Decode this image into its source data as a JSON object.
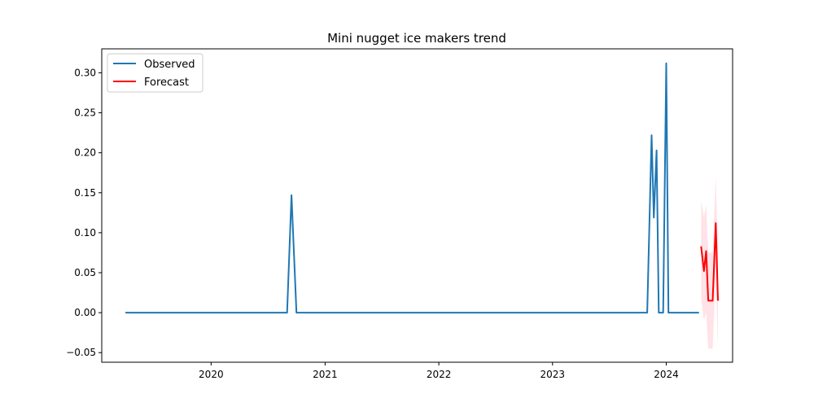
{
  "chart_data": {
    "type": "line",
    "title": "Mini nugget ice makers trend",
    "xlabel": "",
    "ylabel": "",
    "xlim": [
      "2019-01-15",
      "2024-08-01"
    ],
    "ylim": [
      -0.062,
      0.33
    ],
    "x_ticks": [
      "2020",
      "2021",
      "2022",
      "2023",
      "2024"
    ],
    "y_ticks": [
      "−0.05",
      "0.00",
      "0.05",
      "0.10",
      "0.15",
      "0.20",
      "0.25",
      "0.30"
    ],
    "grid": false,
    "legend_position": "top-left",
    "series": [
      {
        "name": "Observed",
        "color": "#1f77b4",
        "points": [
          {
            "x": "2019-04-01",
            "y": 0.0
          },
          {
            "x": "2020-09-01",
            "y": 0.0
          },
          {
            "x": "2020-09-15",
            "y": 0.147
          },
          {
            "x": "2020-10-01",
            "y": 0.0
          },
          {
            "x": "2023-11-01",
            "y": 0.0
          },
          {
            "x": "2023-11-15",
            "y": 0.222
          },
          {
            "x": "2023-11-22",
            "y": 0.119
          },
          {
            "x": "2023-12-01",
            "y": 0.203
          },
          {
            "x": "2023-12-08",
            "y": 0.0
          },
          {
            "x": "2023-12-22",
            "y": 0.0
          },
          {
            "x": "2024-01-01",
            "y": 0.312
          },
          {
            "x": "2024-01-08",
            "y": 0.0
          },
          {
            "x": "2024-04-15",
            "y": 0.0
          }
        ]
      },
      {
        "name": "Forecast",
        "color": "#ff0000",
        "band_color": "#ffc0cb",
        "points": [
          {
            "x": "2024-04-22",
            "y": 0.083,
            "lo": 0.018,
            "hi": 0.14
          },
          {
            "x": "2024-05-01",
            "y": 0.052,
            "lo": -0.01,
            "hi": 0.12
          },
          {
            "x": "2024-05-08",
            "y": 0.077,
            "lo": 0.0,
            "hi": 0.135
          },
          {
            "x": "2024-05-15",
            "y": 0.015,
            "lo": -0.045,
            "hi": 0.075
          },
          {
            "x": "2024-05-29",
            "y": 0.015,
            "lo": -0.045,
            "hi": 0.075
          },
          {
            "x": "2024-06-08",
            "y": 0.112,
            "lo": 0.05,
            "hi": 0.17
          },
          {
            "x": "2024-06-15",
            "y": 0.015,
            "lo": -0.045,
            "hi": 0.075
          }
        ]
      }
    ]
  }
}
